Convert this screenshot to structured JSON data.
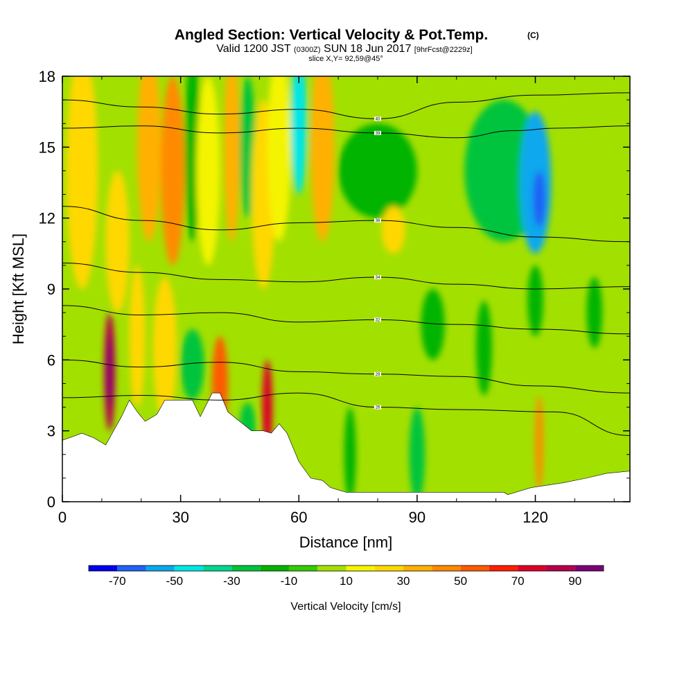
{
  "title": {
    "main": "Angled Section: Vertical Velocity & Pot.Temp.",
    "main_suffix": "(C)",
    "line2_a": "Valid 1200 JST",
    "line2_b": "(0300Z)",
    "line2_c": "SUN 18 Jun 2017",
    "line2_d": "[9hrFcst@2229z]",
    "line3": "slice X,Y= 92,59@45°"
  },
  "chart_data": {
    "type": "heatmap",
    "xlabel": "Distance [nm]",
    "ylabel": "Height [Kft MSL]",
    "xlim": [
      0,
      144
    ],
    "ylim": [
      0,
      18
    ],
    "x_ticks": [
      "0",
      "30",
      "60",
      "90",
      "120"
    ],
    "y_ticks": [
      "0",
      "3",
      "6",
      "9",
      "12",
      "15",
      "18"
    ],
    "x_tick_values": [
      0,
      30,
      60,
      90,
      120
    ],
    "y_tick_values": [
      0,
      3,
      6,
      9,
      12,
      15,
      18
    ],
    "colorbar": {
      "label": "Vertical Velocity [cm/s]",
      "levels": [
        -80,
        -70,
        -60,
        -50,
        -40,
        -30,
        -20,
        -10,
        0,
        10,
        20,
        30,
        40,
        50,
        60,
        70,
        80,
        90,
        100
      ],
      "tick_labels": [
        "-70",
        "-50",
        "-30",
        "-10",
        "10",
        "30",
        "50",
        "70",
        "90"
      ],
      "tick_values": [
        -70,
        -50,
        -30,
        -10,
        10,
        30,
        50,
        70,
        90
      ],
      "colors": [
        "#0000ee",
        "#1f62f5",
        "#09a8ee",
        "#00e6e6",
        "#00d792",
        "#00c43c",
        "#00b400",
        "#33cc00",
        "#a2e000",
        "#f4f400",
        "#ffd800",
        "#ffb000",
        "#ff8a00",
        "#ff5a00",
        "#ff1e00",
        "#dc0028",
        "#b4004b",
        "#7b0078"
      ]
    },
    "terrain": [
      [
        0,
        2.6
      ],
      [
        5,
        2.9
      ],
      [
        8,
        2.7
      ],
      [
        11,
        2.4
      ],
      [
        13,
        3.0
      ],
      [
        15,
        3.6
      ],
      [
        17,
        4.3
      ],
      [
        19,
        3.8
      ],
      [
        21,
        3.4
      ],
      [
        24,
        3.7
      ],
      [
        26,
        4.3
      ],
      [
        33,
        4.3
      ],
      [
        35,
        3.6
      ],
      [
        38,
        4.6
      ],
      [
        40,
        4.6
      ],
      [
        42,
        3.8
      ],
      [
        45,
        3.4
      ],
      [
        48,
        3.0
      ],
      [
        51,
        3.0
      ],
      [
        53,
        2.9
      ],
      [
        55,
        3.3
      ],
      [
        57,
        2.9
      ],
      [
        60,
        1.7
      ],
      [
        63,
        1.0
      ],
      [
        66,
        0.9
      ],
      [
        68,
        0.6
      ],
      [
        70,
        0.5
      ],
      [
        72,
        0.4
      ],
      [
        85,
        0.4
      ],
      [
        112,
        0.4
      ],
      [
        113,
        0.3
      ],
      [
        119,
        0.6
      ],
      [
        127,
        0.8
      ],
      [
        133,
        1.0
      ],
      [
        138,
        1.2
      ],
      [
        144,
        1.3
      ]
    ],
    "theta_contours": [
      {
        "label": "40",
        "points": [
          [
            0,
            17.0
          ],
          [
            20,
            16.7
          ],
          [
            40,
            16.4
          ],
          [
            60,
            16.6
          ],
          [
            80,
            16.2
          ],
          [
            100,
            16.9
          ],
          [
            120,
            17.2
          ],
          [
            144,
            17.3
          ]
        ]
      },
      {
        "label": "39",
        "points": [
          [
            0,
            15.8
          ],
          [
            20,
            15.9
          ],
          [
            40,
            15.6
          ],
          [
            60,
            15.8
          ],
          [
            80,
            15.6
          ],
          [
            100,
            15.4
          ],
          [
            115,
            15.7
          ],
          [
            125,
            15.8
          ],
          [
            144,
            15.9
          ]
        ]
      },
      {
        "label": "36",
        "points": [
          [
            0,
            12.5
          ],
          [
            20,
            11.9
          ],
          [
            40,
            11.5
          ],
          [
            60,
            11.8
          ],
          [
            80,
            11.9
          ],
          [
            100,
            11.6
          ],
          [
            120,
            11.2
          ],
          [
            144,
            11.0
          ]
        ]
      },
      {
        "label": "34",
        "points": [
          [
            0,
            10.1
          ],
          [
            20,
            9.7
          ],
          [
            40,
            9.4
          ],
          [
            60,
            9.3
          ],
          [
            80,
            9.5
          ],
          [
            100,
            9.2
          ],
          [
            120,
            9.0
          ],
          [
            144,
            9.1
          ]
        ]
      },
      {
        "label": "32",
        "points": [
          [
            0,
            8.3
          ],
          [
            20,
            7.9
          ],
          [
            40,
            8.0
          ],
          [
            60,
            7.6
          ],
          [
            80,
            7.7
          ],
          [
            100,
            7.5
          ],
          [
            120,
            7.3
          ],
          [
            144,
            7.1
          ]
        ]
      },
      {
        "label": "29",
        "points": [
          [
            0,
            6.0
          ],
          [
            20,
            5.7
          ],
          [
            40,
            5.9
          ],
          [
            60,
            5.5
          ],
          [
            80,
            5.4
          ],
          [
            100,
            5.3
          ],
          [
            120,
            4.9
          ],
          [
            144,
            4.6
          ]
        ]
      },
      {
        "label": "26",
        "points": [
          [
            0,
            4.4
          ],
          [
            20,
            4.5
          ],
          [
            40,
            4.3
          ],
          [
            60,
            4.6
          ],
          [
            80,
            4.0
          ],
          [
            100,
            3.9
          ],
          [
            125,
            3.8
          ],
          [
            144,
            2.8
          ]
        ]
      }
    ]
  }
}
